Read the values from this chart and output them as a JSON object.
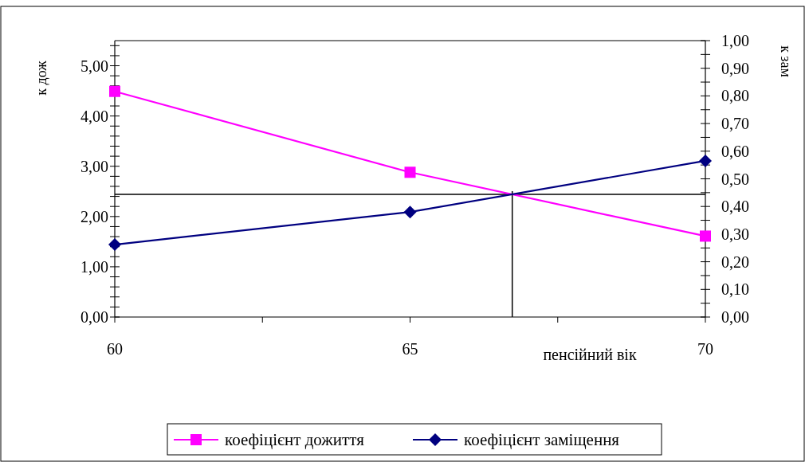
{
  "chart_data": {
    "type": "line",
    "xlabel": "пенсійний вік",
    "ylabel": "к дож",
    "y2label": "к зам",
    "x": [
      60,
      65,
      70
    ],
    "series": [
      {
        "name": "коефіцієнт дожиття",
        "color": "#ff00ff",
        "values": [
          4.49,
          2.88,
          1.61
        ],
        "marker": "square"
      },
      {
        "name": "коефіцієнт заміщення",
        "color": "#000080",
        "values": [
          0.262,
          0.38,
          0.565
        ],
        "axis": "y2",
        "marker": "diamond"
      }
    ],
    "xlim": [
      60,
      70
    ],
    "xticks": [
      60,
      {
        "value": 62.5,
        "label": null
      },
      65,
      {
        "value": 67.5,
        "label": null
      },
      70
    ],
    "ylim": [
      0,
      5.5
    ],
    "yticks": [
      {
        "value": 0,
        "label": "0,00"
      },
      {
        "value": 0.2,
        "label": null
      },
      {
        "value": 0.4,
        "label": null
      },
      {
        "value": 0.6,
        "label": null
      },
      {
        "value": 0.8,
        "label": null
      },
      {
        "value": 1,
        "label": "1,00"
      },
      {
        "value": 1.2,
        "label": null
      },
      {
        "value": 1.4,
        "label": null
      },
      {
        "value": 1.6,
        "label": null
      },
      {
        "value": 1.8,
        "label": null
      },
      {
        "value": 2,
        "label": "2,00"
      },
      {
        "value": 2.2,
        "label": null
      },
      {
        "value": 2.4,
        "label": null
      },
      {
        "value": 2.6,
        "label": null
      },
      {
        "value": 2.8,
        "label": null
      },
      {
        "value": 3,
        "label": "3,00"
      },
      {
        "value": 3.2,
        "label": null
      },
      {
        "value": 3.4,
        "label": null
      },
      {
        "value": 3.6,
        "label": null
      },
      {
        "value": 3.8,
        "label": null
      },
      {
        "value": 4,
        "label": "4,00"
      },
      {
        "value": 4.2,
        "label": null
      },
      {
        "value": 4.4,
        "label": null
      },
      {
        "value": 4.6,
        "label": null
      },
      {
        "value": 4.8,
        "label": null
      },
      {
        "value": 5,
        "label": "5,00"
      },
      {
        "value": 5.2,
        "label": null
      },
      {
        "value": 5.4,
        "label": null
      }
    ],
    "y2lim": [
      0,
      1
    ],
    "y2ticks": [
      {
        "value": 0,
        "label": "0,00"
      },
      {
        "value": 0.05,
        "label": null
      },
      {
        "value": 0.1,
        "label": "0,10"
      },
      {
        "value": 0.15,
        "label": null
      },
      {
        "value": 0.2,
        "label": "0,20"
      },
      {
        "value": 0.25,
        "label": null
      },
      {
        "value": 0.3,
        "label": "0,30"
      },
      {
        "value": 0.35,
        "label": null
      },
      {
        "value": 0.4,
        "label": "0,40"
      },
      {
        "value": 0.45,
        "label": null
      },
      {
        "value": 0.5,
        "label": "0,50"
      },
      {
        "value": 0.55,
        "label": null
      },
      {
        "value": 0.6,
        "label": "0,60"
      },
      {
        "value": 0.65,
        "label": null
      },
      {
        "value": 0.7,
        "label": "0,70"
      },
      {
        "value": 0.75,
        "label": null
      },
      {
        "value": 0.8,
        "label": "0,80"
      },
      {
        "value": 0.85,
        "label": null
      },
      {
        "value": 0.9,
        "label": "0,90"
      },
      {
        "value": 0.95,
        "label": null
      },
      {
        "value": 1,
        "label": "1,00"
      }
    ],
    "ref_lines": [
      {
        "axis": "y2",
        "value": 0.444,
        "color": "#000000"
      },
      {
        "axis": "x",
        "value": 66.73,
        "color": "#000000"
      }
    ],
    "grid": false,
    "legend": "bottom",
    "line_style": "solid"
  }
}
